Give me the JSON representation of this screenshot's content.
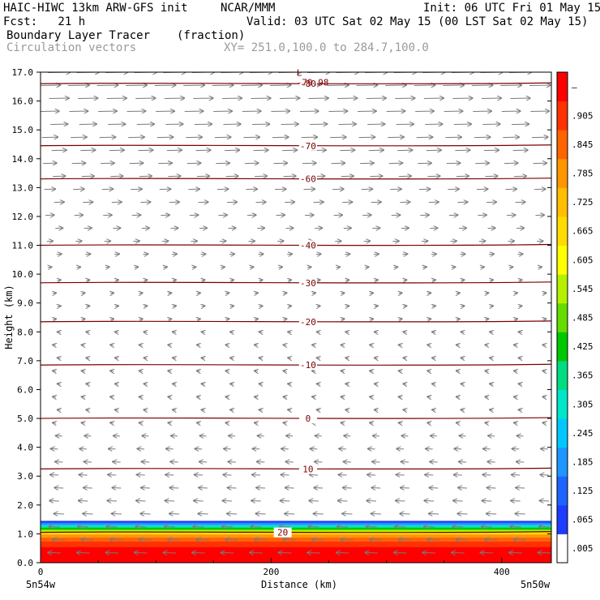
{
  "header": {
    "model": "HAIC-HIWC 13km ARW-GFS init",
    "center": "NCAR/MMM",
    "init": "Init: 06 UTC Fri 01 May 15",
    "fcst": "Fcst:   21 h",
    "valid": "Valid: 03 UTC Sat 02 May 15 (00 LST Sat 02 May 15)",
    "field": "Boundary Layer Tracer",
    "units": "(fraction)",
    "vectors": "Circulation vectors",
    "xy": "XY= 251.0,100.0 to 284.7,100.0"
  },
  "chart_data": {
    "type": "heatmap",
    "title": "Boundary Layer Tracer",
    "xlabel": "Distance (km)",
    "ylabel": "Height (km)",
    "xlim": [
      0,
      443
    ],
    "ylim": [
      0,
      17
    ],
    "x_ticks": [
      "0",
      "200",
      "400"
    ],
    "x_end_labels": [
      "5n54w",
      "5n50w"
    ],
    "y_ticks": [
      "0.0",
      "1.0",
      "2.0",
      "3.0",
      "4.0",
      "5.0",
      "6.0",
      "7.0",
      "8.0",
      "9.0",
      "10.0",
      "11.0",
      "12.0",
      "13.0",
      "14.0",
      "15.0",
      "16.0",
      "17.0"
    ],
    "colorbar": {
      "ticks": [
        ".005",
        ".065",
        ".125",
        ".185",
        ".245",
        ".305",
        ".365",
        ".425",
        ".485",
        ".545",
        ".605",
        ".665",
        ".725",
        ".785",
        ".845",
        ".905",
        "–"
      ],
      "colors": [
        "#ffffff",
        "#1e3cff",
        "#1e64ff",
        "#1e96ff",
        "#00c8ff",
        "#00e6c8",
        "#00dc82",
        "#00c800",
        "#64dc00",
        "#b4f000",
        "#ffff00",
        "#ffdc00",
        "#ffbe00",
        "#ff9600",
        "#ff6400",
        "#ff3200",
        "#ff0000"
      ]
    },
    "tracer_top_km": 1.45,
    "temperature_contours": [
      {
        "label": "20",
        "height_km": 1.05
      },
      {
        "label": "10",
        "height_km": 3.25
      },
      {
        "label": "0",
        "height_km": 5.0
      },
      {
        "label": "-10",
        "height_km": 6.85
      },
      {
        "label": "-20",
        "height_km": 8.35
      },
      {
        "label": "-30",
        "height_km": 9.7
      },
      {
        "label": "-40",
        "height_km": 11.0
      },
      {
        "label": "-60",
        "height_km": 13.3
      },
      {
        "label": "-70",
        "height_km": 14.45
      },
      {
        "label": "-80",
        "height_km": 16.6
      }
    ],
    "min_marker": {
      "symbol": "L",
      "value": "-79.98",
      "x_km": 222,
      "height_km": 16.7
    }
  }
}
